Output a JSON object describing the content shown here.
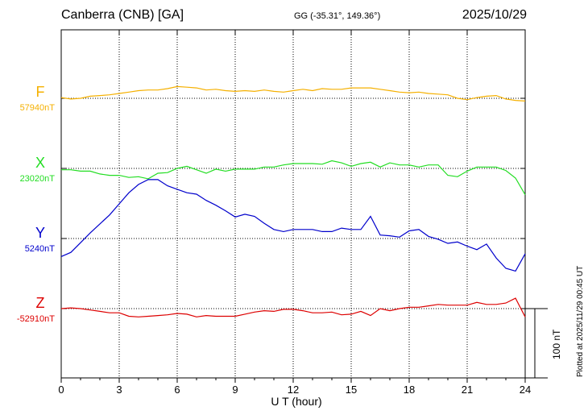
{
  "header": {
    "station": "Canberra (CNB)  [GA]",
    "coords": "GG (-35.31°, 149.36°)",
    "date": "2025/10/29"
  },
  "plotted_note": "Plotted at 2025/11/29 00:45 UT",
  "scale_label": "100 nT",
  "colors": {
    "F": "#f5b000",
    "X": "#22dd22",
    "Y": "#0000cc",
    "Z": "#dd0000"
  },
  "chart_data": {
    "type": "line",
    "title": "",
    "xlabel": "U T (hour)",
    "ylabel": "",
    "xlim": [
      0,
      24
    ],
    "xticks": [
      "0",
      "3",
      "6",
      "9",
      "12",
      "15",
      "18",
      "21",
      "24"
    ],
    "grid": true,
    "x": [
      0,
      0.5,
      1,
      1.5,
      2,
      2.5,
      3,
      3.5,
      4,
      4.5,
      5,
      5.5,
      6,
      6.5,
      7,
      7.5,
      8,
      8.5,
      9,
      9.5,
      10,
      10.5,
      11,
      11.5,
      12,
      12.5,
      13,
      13.5,
      14,
      14.5,
      15,
      15.5,
      16,
      16.5,
      17,
      17.5,
      18,
      18.5,
      19,
      19.5,
      20,
      20.5,
      21,
      21.5,
      22,
      22.5,
      23,
      23.5,
      24
    ],
    "series": [
      {
        "name": "F",
        "baseline_label": "57940nT",
        "baseline_nT": 57940,
        "values": [
          57941,
          57939,
          57940,
          57943,
          57944,
          57945,
          57947,
          57949,
          57951,
          57952,
          57952,
          57954,
          57957,
          57956,
          57955,
          57952,
          57953,
          57951,
          57950,
          57951,
          57950,
          57952,
          57950,
          57949,
          57951,
          57953,
          57951,
          57954,
          57953,
          57953,
          57955,
          57955,
          57955,
          57953,
          57951,
          57949,
          57948,
          57949,
          57947,
          57946,
          57945,
          57940,
          57938,
          57941,
          57943,
          57944,
          57939,
          57937,
          57936
        ]
      },
      {
        "name": "X",
        "baseline_label": "23020nT",
        "baseline_nT": 23020,
        "values": [
          23018,
          23018,
          23016,
          23016,
          23012,
          23010,
          23010,
          23007,
          23008,
          23005,
          23013,
          23014,
          23020,
          23023,
          23018,
          23013,
          23019,
          23016,
          23019,
          23019,
          23019,
          23022,
          23022,
          23025,
          23027,
          23027,
          23027,
          23026,
          23031,
          23028,
          23023,
          23027,
          23029,
          23022,
          23028,
          23025,
          23025,
          23022,
          23025,
          23025,
          23010,
          23008,
          23016,
          23022,
          23022,
          23022,
          23017,
          23006,
          22982
        ]
      },
      {
        "name": "Y",
        "baseline_label": "5240nT",
        "baseline_nT": 5240,
        "values": [
          5214,
          5220,
          5234,
          5248,
          5261,
          5274,
          5290,
          5306,
          5318,
          5325,
          5325,
          5316,
          5311,
          5306,
          5304,
          5295,
          5288,
          5280,
          5271,
          5275,
          5272,
          5262,
          5253,
          5250,
          5253,
          5253,
          5253,
          5250,
          5250,
          5255,
          5253,
          5253,
          5272,
          5245,
          5244,
          5242,
          5251,
          5253,
          5243,
          5239,
          5233,
          5235,
          5229,
          5224,
          5232,
          5212,
          5197,
          5193,
          5218
        ]
      },
      {
        "name": "Z",
        "baseline_label": "-52910nT",
        "baseline_nT": -52910,
        "values": [
          -52910,
          -52909,
          -52910,
          -52912,
          -52914,
          -52916,
          -52916,
          -52921,
          -52922,
          -52921,
          -52920,
          -52919,
          -52917,
          -52918,
          -52922,
          -52920,
          -52921,
          -52921,
          -52921,
          -52918,
          -52915,
          -52913,
          -52914,
          -52911,
          -52911,
          -52913,
          -52916,
          -52916,
          -52915,
          -52919,
          -52918,
          -52914,
          -52920,
          -52910,
          -52913,
          -52910,
          -52908,
          -52908,
          -52906,
          -52904,
          -52905,
          -52905,
          -52905,
          -52901,
          -52904,
          -52904,
          -52902,
          -52895,
          -52922
        ]
      }
    ]
  }
}
